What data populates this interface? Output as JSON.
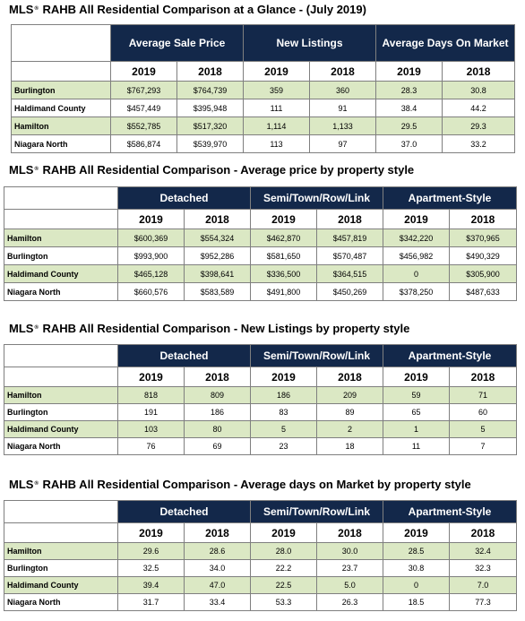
{
  "mls_prefix": "MLS",
  "mls_mark": "®",
  "tables": [
    {
      "title": "RAHB All Residential Comparison at a Glance - (July 2019)",
      "groups": [
        "Average Sale Price",
        "New Listings",
        "Average Days On Market"
      ],
      "years": [
        "2019",
        "2018",
        "2019",
        "2018",
        "2019",
        "2018"
      ],
      "rows": [
        {
          "city": "Burlington",
          "values": [
            "$767,293",
            "$764,739",
            "359",
            "360",
            "28.3",
            "30.8"
          ]
        },
        {
          "city": "Haldimand County",
          "values": [
            "$457,449",
            "$395,948",
            "111",
            "91",
            "38.4",
            "44.2"
          ]
        },
        {
          "city": "Hamilton",
          "values": [
            "$552,785",
            "$517,320",
            "1,114",
            "1,133",
            "29.5",
            "29.3"
          ]
        },
        {
          "city": "Niagara North",
          "values": [
            "$586,874",
            "$539,970",
            "113",
            "97",
            "37.0",
            "33.2"
          ]
        }
      ]
    },
    {
      "title": "RAHB All Residential Comparison - Average price by property style",
      "groups": [
        "Detached",
        "Semi/Town/Row/Link",
        "Apartment-Style"
      ],
      "years": [
        "2019",
        "2018",
        "2019",
        "2018",
        "2019",
        "2018"
      ],
      "rows": [
        {
          "city": "Hamilton",
          "values": [
            "$600,369",
            "$554,324",
            "$462,870",
            "$457,819",
            "$342,220",
            "$370,965"
          ]
        },
        {
          "city": "Burlington",
          "values": [
            "$993,900",
            "$952,286",
            "$581,650",
            "$570,487",
            "$456,982",
            "$490,329"
          ]
        },
        {
          "city": "Haldimand County",
          "values": [
            "$465,128",
            "$398,641",
            "$336,500",
            "$364,515",
            "0",
            "$305,900"
          ]
        },
        {
          "city": "Niagara North",
          "values": [
            "$660,576",
            "$583,589",
            "$491,800",
            "$450,269",
            "$378,250",
            "$487,633"
          ]
        }
      ]
    },
    {
      "title": "RAHB All Residential Comparison - New Listings by property style",
      "groups": [
        "Detached",
        "Semi/Town/Row/Link",
        "Apartment-Style"
      ],
      "years": [
        "2019",
        "2018",
        "2019",
        "2018",
        "2019",
        "2018"
      ],
      "rows": [
        {
          "city": "Hamilton",
          "values": [
            "818",
            "809",
            "186",
            "209",
            "59",
            "71"
          ]
        },
        {
          "city": "Burlington",
          "values": [
            "191",
            "186",
            "83",
            "89",
            "65",
            "60"
          ]
        },
        {
          "city": "Haldimand County",
          "values": [
            "103",
            "80",
            "5",
            "2",
            "1",
            "5"
          ]
        },
        {
          "city": "Niagara North",
          "values": [
            "76",
            "69",
            "23",
            "18",
            "11",
            "7"
          ]
        }
      ]
    },
    {
      "title": "RAHB All Residential Comparison - Average days on Market by property style",
      "groups": [
        "Detached",
        "Semi/Town/Row/Link",
        "Apartment-Style"
      ],
      "years": [
        "2019",
        "2018",
        "2019",
        "2018",
        "2019",
        "2018"
      ],
      "rows": [
        {
          "city": "Hamilton",
          "values": [
            "29.6",
            "28.6",
            "28.0",
            "30.0",
            "28.5",
            "32.4"
          ]
        },
        {
          "city": "Burlington",
          "values": [
            "32.5",
            "34.0",
            "22.2",
            "23.7",
            "30.8",
            "32.3"
          ]
        },
        {
          "city": "Haldimand County",
          "values": [
            "39.4",
            "47.0",
            "22.5",
            "5.0",
            "0",
            "7.0"
          ]
        },
        {
          "city": "Niagara North",
          "values": [
            "31.7",
            "33.4",
            "53.3",
            "26.3",
            "18.5",
            "77.3"
          ]
        }
      ]
    }
  ],
  "colors": {
    "header_bg": "#13284a",
    "header_text": "#ffffff",
    "green_row": "#dbe8c4",
    "border": "#7f7f7f"
  }
}
